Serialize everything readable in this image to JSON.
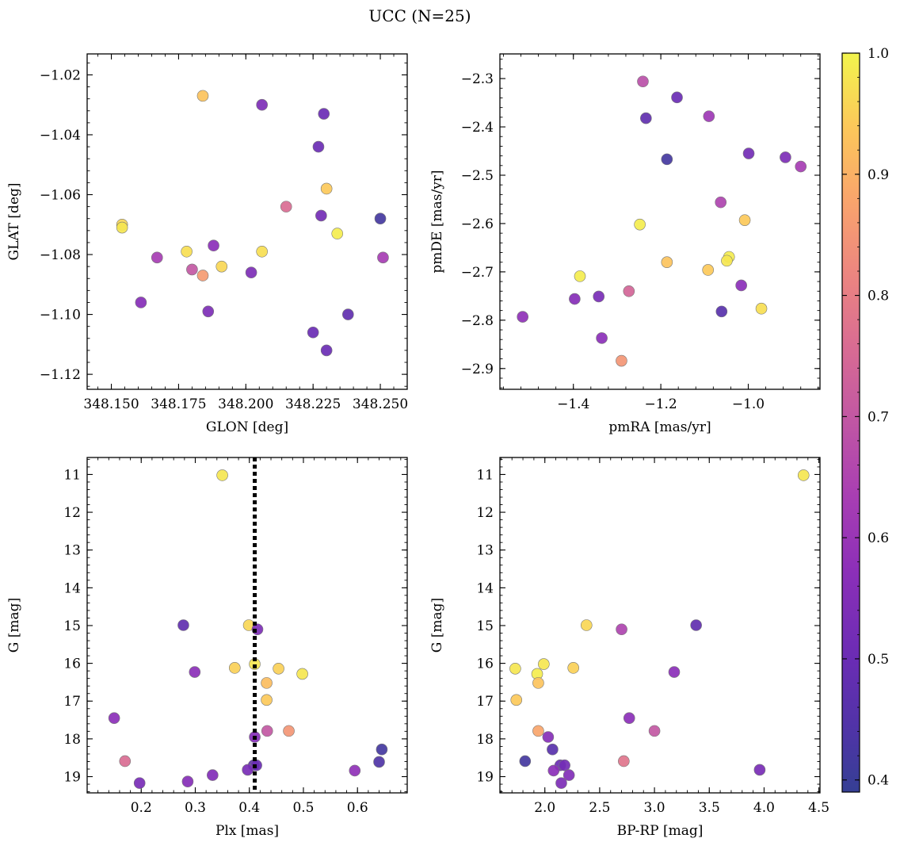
{
  "title": "UCC (N=25)",
  "colorbar": {
    "min": 0.39,
    "max": 1.0,
    "ticks": [
      0.4,
      0.5,
      0.6,
      0.7,
      0.8,
      0.9,
      1.0
    ],
    "tick_labels": [
      "0.4",
      "0.5",
      "0.6",
      "0.7",
      "0.8",
      "0.9",
      "1.0"
    ],
    "colormap": "plasma"
  },
  "chart_data": [
    {
      "type": "scatter",
      "xlabel": "GLON [deg]",
      "ylabel": "GLAT [deg]",
      "xlim": [
        348.141,
        348.26
      ],
      "ylim": [
        -1.125,
        -1.013
      ],
      "yinvert": false,
      "xticks": [
        348.15,
        348.175,
        348.2,
        348.225,
        348.25
      ],
      "xtick_labels": [
        "348.150",
        "348.175",
        "348.200",
        "348.225",
        "348.250"
      ],
      "yticks": [
        -1.12,
        -1.1,
        -1.08,
        -1.06,
        -1.04,
        -1.02
      ],
      "ytick_labels": [
        "−1.12",
        "−1.10",
        "−1.08",
        "−1.06",
        "−1.04",
        "−1.02"
      ],
      "points": [
        {
          "x": 348.184,
          "y": -1.027,
          "c": 0.93
        },
        {
          "x": 348.206,
          "y": -1.03,
          "c": 0.54
        },
        {
          "x": 348.229,
          "y": -1.033,
          "c": 0.5
        },
        {
          "x": 348.227,
          "y": -1.044,
          "c": 0.5
        },
        {
          "x": 348.23,
          "y": -1.058,
          "c": 0.94
        },
        {
          "x": 348.215,
          "y": -1.064,
          "c": 0.76
        },
        {
          "x": 348.228,
          "y": -1.067,
          "c": 0.52
        },
        {
          "x": 348.25,
          "y": -1.068,
          "c": 0.42
        },
        {
          "x": 348.154,
          "y": -1.07,
          "c": 0.96
        },
        {
          "x": 348.154,
          "y": -1.071,
          "c": 0.98
        },
        {
          "x": 348.234,
          "y": -1.073,
          "c": 0.99
        },
        {
          "x": 348.188,
          "y": -1.077,
          "c": 0.57
        },
        {
          "x": 348.178,
          "y": -1.079,
          "c": 0.97
        },
        {
          "x": 348.206,
          "y": -1.079,
          "c": 0.97
        },
        {
          "x": 348.167,
          "y": -1.081,
          "c": 0.63
        },
        {
          "x": 348.251,
          "y": -1.081,
          "c": 0.63
        },
        {
          "x": 348.191,
          "y": -1.084,
          "c": 0.96
        },
        {
          "x": 348.18,
          "y": -1.085,
          "c": 0.7
        },
        {
          "x": 348.184,
          "y": -1.087,
          "c": 0.86
        },
        {
          "x": 348.202,
          "y": -1.086,
          "c": 0.54
        },
        {
          "x": 348.161,
          "y": -1.096,
          "c": 0.56
        },
        {
          "x": 348.186,
          "y": -1.099,
          "c": 0.54
        },
        {
          "x": 348.238,
          "y": -1.1,
          "c": 0.48
        },
        {
          "x": 348.225,
          "y": -1.106,
          "c": 0.5
        },
        {
          "x": 348.23,
          "y": -1.112,
          "c": 0.5
        }
      ]
    },
    {
      "type": "scatter",
      "xlabel": "pmRA [mas/yr]",
      "ylabel": "pmDE [mas/yr]",
      "xlim": [
        -1.568,
        -0.836
      ],
      "ylim": [
        -2.943,
        -2.249
      ],
      "yinvert": false,
      "xticks": [
        -1.4,
        -1.2,
        -1.0
      ],
      "xtick_labels": [
        "−1.4",
        "−1.2",
        "−1.0"
      ],
      "yticks": [
        -2.9,
        -2.8,
        -2.7,
        -2.6,
        -2.5,
        -2.4,
        -2.3
      ],
      "ytick_labels": [
        "−2.9",
        "−2.8",
        "−2.7",
        "−2.6",
        "−2.5",
        "−2.4",
        "−2.3"
      ],
      "points": [
        {
          "x": -1.241,
          "y": -2.306,
          "c": 0.68
        },
        {
          "x": -1.163,
          "y": -2.339,
          "c": 0.5
        },
        {
          "x": -1.234,
          "y": -2.382,
          "c": 0.48
        },
        {
          "x": -1.09,
          "y": -2.378,
          "c": 0.61
        },
        {
          "x": -0.999,
          "y": -2.455,
          "c": 0.52
        },
        {
          "x": -0.915,
          "y": -2.463,
          "c": 0.54
        },
        {
          "x": -0.88,
          "y": -2.482,
          "c": 0.63
        },
        {
          "x": -1.186,
          "y": -2.467,
          "c": 0.42
        },
        {
          "x": -1.063,
          "y": -2.556,
          "c": 0.65
        },
        {
          "x": -1.008,
          "y": -2.593,
          "c": 0.94
        },
        {
          "x": -1.248,
          "y": -2.602,
          "c": 0.99
        },
        {
          "x": -1.044,
          "y": -2.669,
          "c": 0.99
        },
        {
          "x": -1.049,
          "y": -2.677,
          "c": 0.98
        },
        {
          "x": -1.186,
          "y": -2.68,
          "c": 0.93
        },
        {
          "x": -1.092,
          "y": -2.696,
          "c": 0.94
        },
        {
          "x": -1.385,
          "y": -2.709,
          "c": 0.99
        },
        {
          "x": -1.016,
          "y": -2.728,
          "c": 0.57
        },
        {
          "x": -1.273,
          "y": -2.74,
          "c": 0.74
        },
        {
          "x": -1.342,
          "y": -2.751,
          "c": 0.53
        },
        {
          "x": -1.397,
          "y": -2.756,
          "c": 0.56
        },
        {
          "x": -0.97,
          "y": -2.776,
          "c": 0.97
        },
        {
          "x": -1.061,
          "y": -2.782,
          "c": 0.46
        },
        {
          "x": -1.516,
          "y": -2.793,
          "c": 0.58
        },
        {
          "x": -1.335,
          "y": -2.837,
          "c": 0.57
        },
        {
          "x": -1.29,
          "y": -2.884,
          "c": 0.85
        }
      ]
    },
    {
      "type": "scatter",
      "xlabel": "Plx [mas]",
      "ylabel": "G [mag]",
      "xlim": [
        0.1,
        0.692
      ],
      "ylim": [
        10.55,
        19.43
      ],
      "yinvert": true,
      "vline": {
        "x": 0.41,
        "style": "dotted"
      },
      "xticks": [
        0.2,
        0.3,
        0.4,
        0.5,
        0.6
      ],
      "xtick_labels": [
        "0.2",
        "0.3",
        "0.4",
        "0.5",
        "0.6"
      ],
      "yticks": [
        11,
        12,
        13,
        14,
        15,
        16,
        17,
        18,
        19
      ],
      "ytick_labels": [
        "11",
        "12",
        "13",
        "14",
        "15",
        "16",
        "17",
        "18",
        "19"
      ],
      "points": [
        {
          "x": 0.35,
          "y": 11.02,
          "c": 0.98
        },
        {
          "x": 0.278,
          "y": 14.99,
          "c": 0.48
        },
        {
          "x": 0.399,
          "y": 14.99,
          "c": 0.96
        },
        {
          "x": 0.415,
          "y": 15.1,
          "c": 0.54
        },
        {
          "x": 0.41,
          "y": 16.02,
          "c": 0.98
        },
        {
          "x": 0.373,
          "y": 16.12,
          "c": 0.95
        },
        {
          "x": 0.454,
          "y": 16.14,
          "c": 0.95
        },
        {
          "x": 0.299,
          "y": 16.23,
          "c": 0.57
        },
        {
          "x": 0.498,
          "y": 16.28,
          "c": 0.98
        },
        {
          "x": 0.432,
          "y": 16.52,
          "c": 0.92
        },
        {
          "x": 0.432,
          "y": 16.97,
          "c": 0.94
        },
        {
          "x": 0.15,
          "y": 17.45,
          "c": 0.57
        },
        {
          "x": 0.433,
          "y": 17.79,
          "c": 0.7
        },
        {
          "x": 0.473,
          "y": 17.79,
          "c": 0.85
        },
        {
          "x": 0.41,
          "y": 17.95,
          "c": 0.56
        },
        {
          "x": 0.645,
          "y": 18.28,
          "c": 0.42
        },
        {
          "x": 0.17,
          "y": 18.59,
          "c": 0.76
        },
        {
          "x": 0.64,
          "y": 18.61,
          "c": 0.44
        },
        {
          "x": 0.408,
          "y": 18.7,
          "c": 0.48
        },
        {
          "x": 0.413,
          "y": 18.7,
          "c": 0.5
        },
        {
          "x": 0.397,
          "y": 18.82,
          "c": 0.53
        },
        {
          "x": 0.595,
          "y": 18.84,
          "c": 0.58
        },
        {
          "x": 0.332,
          "y": 18.96,
          "c": 0.55
        },
        {
          "x": 0.286,
          "y": 19.13,
          "c": 0.56
        },
        {
          "x": 0.197,
          "y": 19.17,
          "c": 0.53
        }
      ]
    },
    {
      "type": "scatter",
      "xlabel": "BP-RP [mag]",
      "ylabel": "G [mag]",
      "xlim": [
        1.59,
        4.51
      ],
      "ylim": [
        10.55,
        19.43
      ],
      "yinvert": true,
      "xticks": [
        2.0,
        2.5,
        3.0,
        3.5,
        4.0,
        4.5
      ],
      "xtick_labels": [
        "2.0",
        "2.5",
        "3.0",
        "3.5",
        "4.0",
        "4.5"
      ],
      "yticks": [
        11,
        12,
        13,
        14,
        15,
        16,
        17,
        18,
        19
      ],
      "ytick_labels": [
        "11",
        "12",
        "13",
        "14",
        "15",
        "16",
        "17",
        "18",
        "19"
      ],
      "points": [
        {
          "x": 4.36,
          "y": 11.02,
          "c": 0.98
        },
        {
          "x": 2.38,
          "y": 14.99,
          "c": 0.96
        },
        {
          "x": 3.38,
          "y": 14.99,
          "c": 0.48
        },
        {
          "x": 2.7,
          "y": 15.1,
          "c": 0.65
        },
        {
          "x": 1.99,
          "y": 16.02,
          "c": 0.98
        },
        {
          "x": 1.73,
          "y": 16.14,
          "c": 0.98
        },
        {
          "x": 2.26,
          "y": 16.12,
          "c": 0.95
        },
        {
          "x": 3.18,
          "y": 16.23,
          "c": 0.57
        },
        {
          "x": 1.93,
          "y": 16.28,
          "c": 0.99
        },
        {
          "x": 1.94,
          "y": 16.52,
          "c": 0.93
        },
        {
          "x": 1.74,
          "y": 16.97,
          "c": 0.94
        },
        {
          "x": 2.77,
          "y": 17.45,
          "c": 0.57
        },
        {
          "x": 1.94,
          "y": 17.79,
          "c": 0.88
        },
        {
          "x": 3.0,
          "y": 17.79,
          "c": 0.7
        },
        {
          "x": 2.03,
          "y": 17.95,
          "c": 0.56
        },
        {
          "x": 2.07,
          "y": 18.28,
          "c": 0.46
        },
        {
          "x": 1.82,
          "y": 18.59,
          "c": 0.42
        },
        {
          "x": 2.72,
          "y": 18.59,
          "c": 0.78
        },
        {
          "x": 2.14,
          "y": 18.7,
          "c": 0.5
        },
        {
          "x": 2.18,
          "y": 18.7,
          "c": 0.52
        },
        {
          "x": 2.08,
          "y": 18.84,
          "c": 0.57
        },
        {
          "x": 3.96,
          "y": 18.82,
          "c": 0.53
        },
        {
          "x": 2.22,
          "y": 18.96,
          "c": 0.55
        },
        {
          "x": 2.15,
          "y": 19.17,
          "c": 0.54
        }
      ]
    }
  ]
}
